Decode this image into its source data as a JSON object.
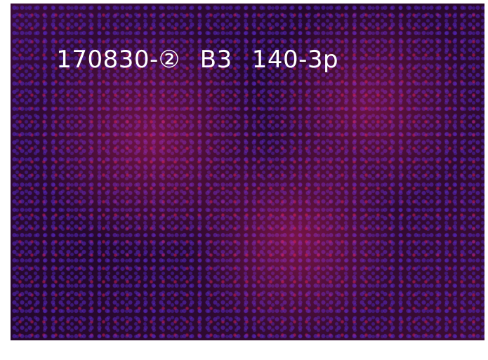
{
  "caption": {
    "parts": [
      "170830-②",
      "B3",
      "140-3p"
    ]
  }
}
